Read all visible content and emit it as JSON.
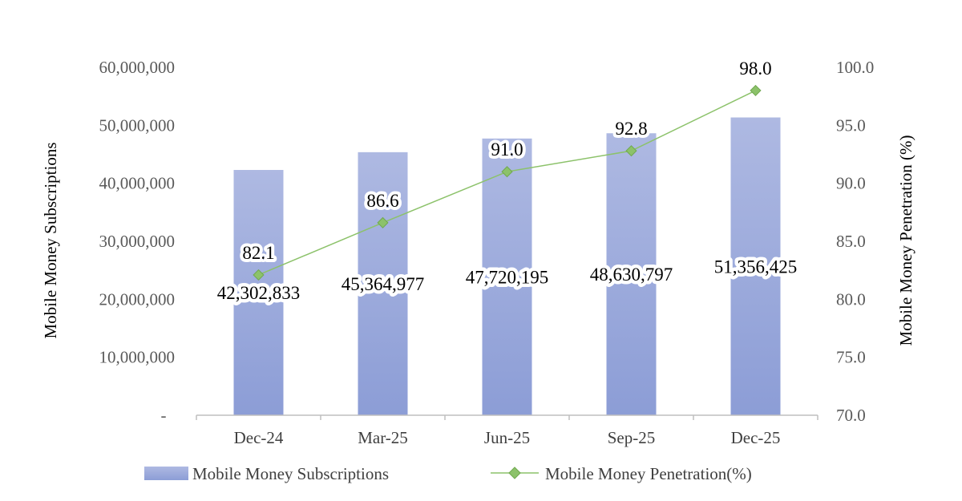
{
  "chart_data": {
    "type": "bar",
    "categories": [
      "Dec-24",
      "Mar-25",
      "Jun-25",
      "Sep-25",
      "Dec-25"
    ],
    "series": [
      {
        "name": "Mobile Money Subscriptions",
        "type": "bar",
        "axis": "left",
        "values": [
          42302833,
          45364977,
          47720195,
          48630797,
          51356425
        ],
        "labels": [
          "42,302,833",
          "45,364,977",
          "47,720,195",
          "48,630,797",
          "51,356,425"
        ],
        "color": "#8FA0D8"
      },
      {
        "name": "Mobile Money Penetration(%)",
        "type": "line",
        "axis": "right",
        "values": [
          82.1,
          86.6,
          91.0,
          92.8,
          98.0
        ],
        "labels": [
          "82.1",
          "86.6",
          "91.0",
          "92.8",
          "98.0"
        ],
        "color": "#8CC26A"
      }
    ],
    "y_left": {
      "label": "Mobile Money Subscriptions",
      "lim": [
        0,
        60000000
      ],
      "ticks": [
        0,
        10000000,
        20000000,
        30000000,
        40000000,
        50000000,
        60000000
      ],
      "tick_labels": [
        "-",
        "10,000,000",
        "20,000,000",
        "30,000,000",
        "40,000,000",
        "50,000,000",
        "60,000,000"
      ]
    },
    "y_right": {
      "label": "Mobile Money Penetration (%)",
      "lim": [
        70,
        100
      ],
      "ticks": [
        70,
        75,
        80,
        85,
        90,
        95,
        100
      ],
      "tick_labels": [
        "70.0",
        "75.0",
        "80.0",
        "85.0",
        "90.0",
        "95.0",
        "100.0"
      ]
    },
    "grid": false,
    "legend": "bottom"
  }
}
